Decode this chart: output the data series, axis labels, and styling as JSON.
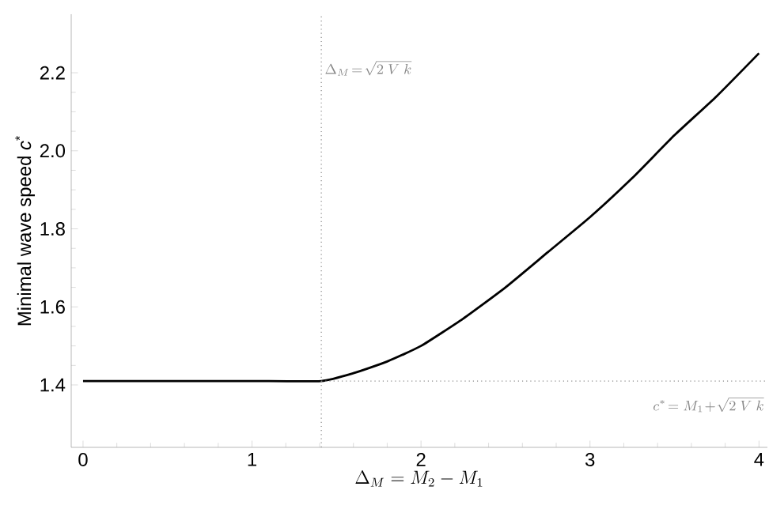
{
  "chart_data": {
    "type": "line",
    "xlabel": "\\Delta_M = M_2 - M_1",
    "ylabel": "Minimal wave speed *c*$^{*}$",
    "x": [
      0,
      0.5,
      1,
      1.41,
      1.6,
      1.8,
      2,
      2.25,
      2.5,
      2.75,
      3,
      3.25,
      3.5,
      3.75,
      4
    ],
    "series": [
      {
        "color": "#000000",
        "values": [
          1.41,
          1.41,
          1.41,
          1.41,
          1.43,
          1.46,
          1.5,
          1.57,
          1.65,
          1.74,
          1.83,
          1.93,
          2.04,
          2.14,
          2.25
        ]
      }
    ],
    "xlim": [
      -0.07,
      4.05
    ],
    "ylim": [
      1.24,
      2.35
    ],
    "xticks": [
      0,
      1,
      2,
      3,
      4
    ],
    "yticks": [
      1.4,
      1.6,
      1.8,
      {
        "value": 2,
        "label": "2.0"
      },
      2.2
    ],
    "ref_lines": [
      {
        "axis": "x",
        "value": 1.41,
        "label": "\\Delta_M\\!=\\!\\sqrt{2\\;V\\;k}",
        "color": "#888888",
        "line_style": "dotted"
      },
      {
        "axis": "y",
        "value": 1.41,
        "label": "c^{*}\\!=M_1\\!+\\!\\sqrt{2\\;V\\;k}",
        "color": "#888888",
        "line_style": "dotted"
      }
    ],
    "grid": false,
    "marker": "none",
    "line_style": "solid"
  }
}
